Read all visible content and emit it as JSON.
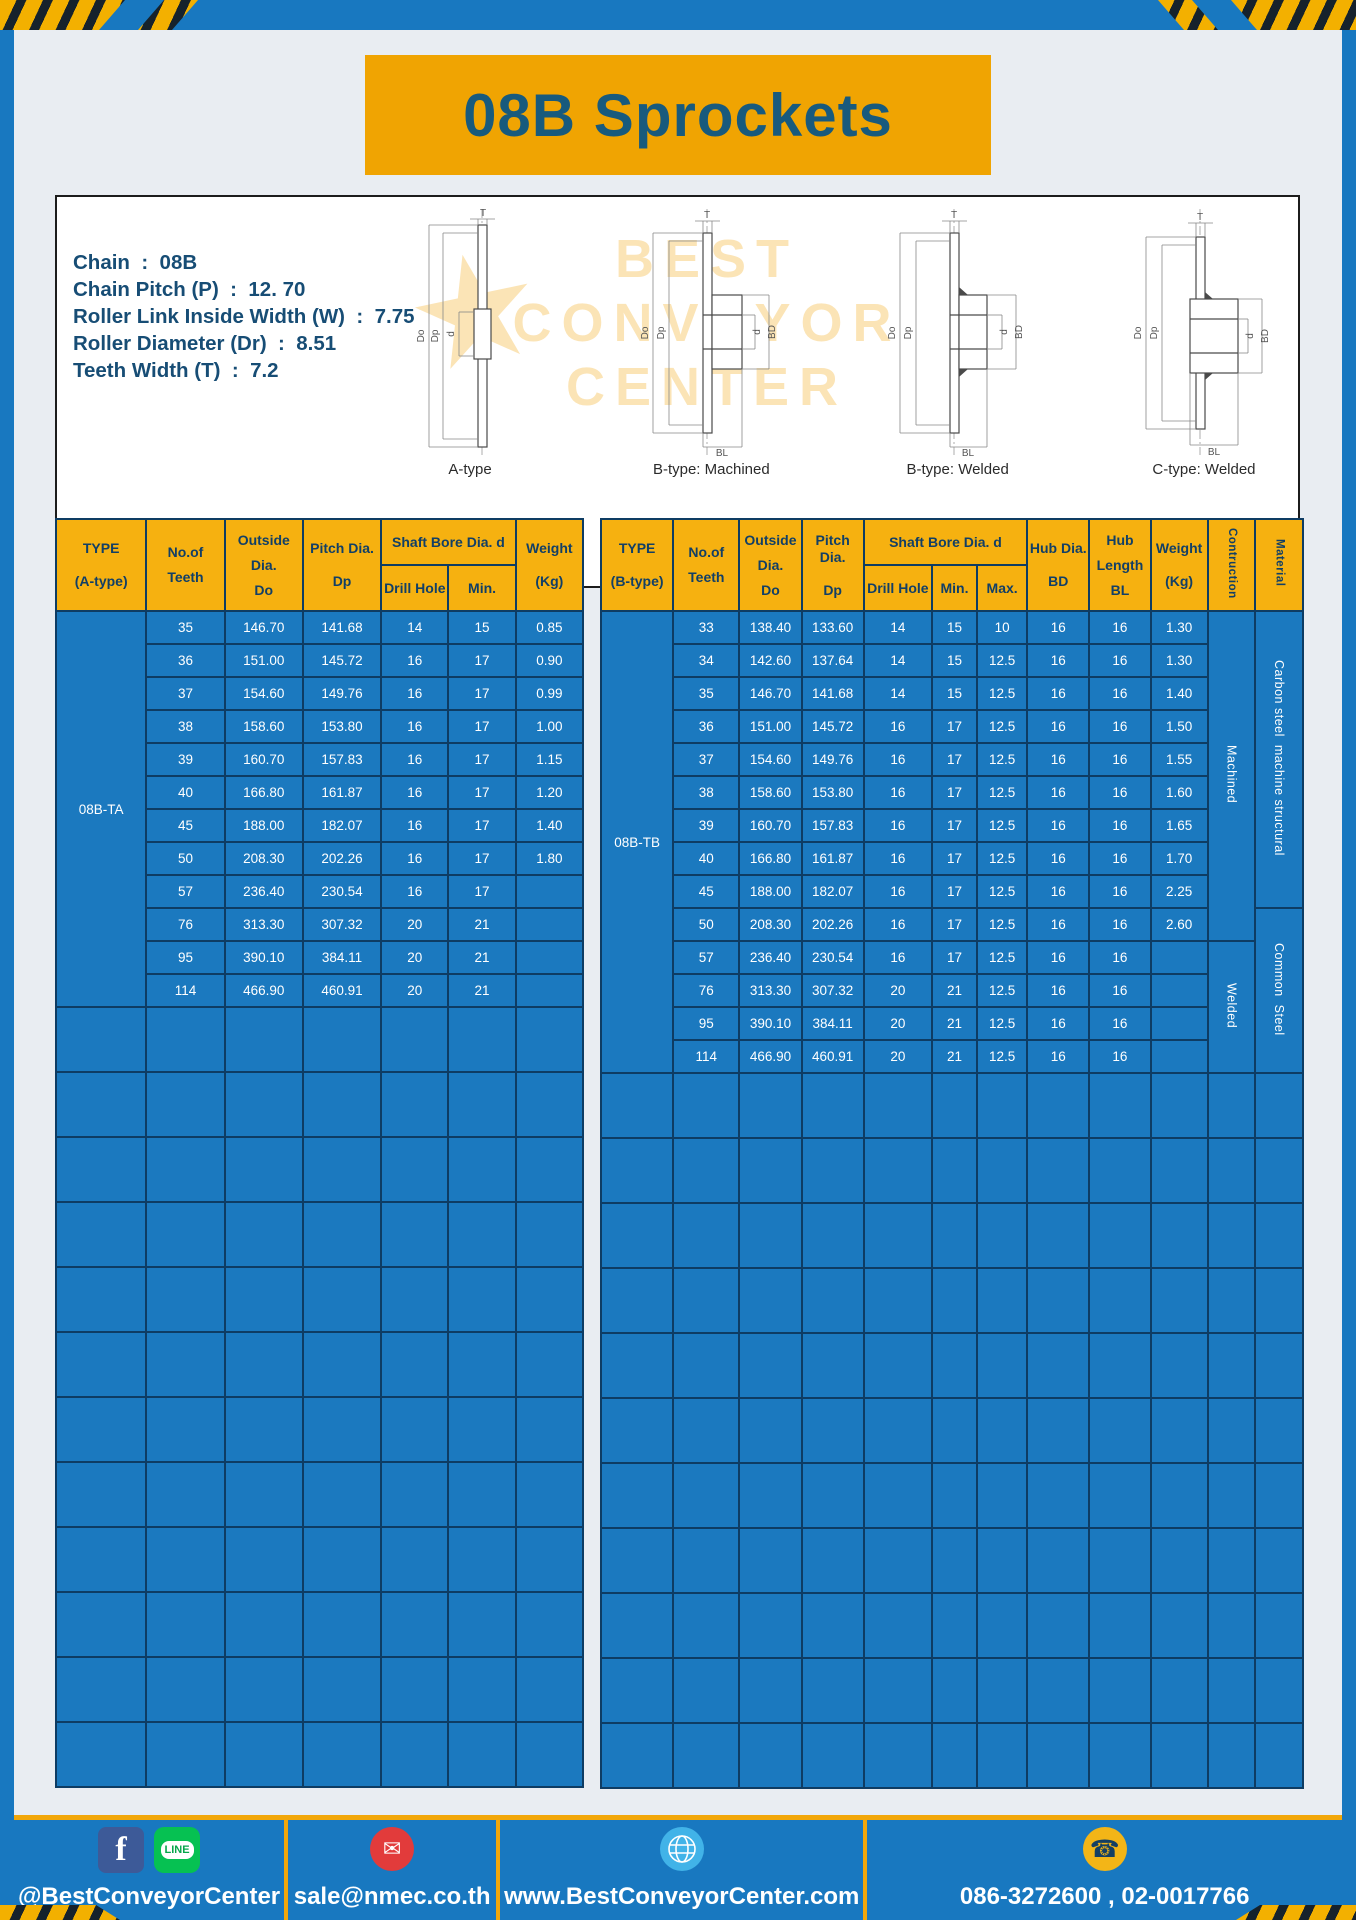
{
  "title": "08B Sprockets",
  "colors": {
    "frame_blue": "#1878c0",
    "amber": "#f2a70a",
    "table_header_yellow": "#f6b110",
    "table_body_blue": "#1b79bf",
    "table_border": "#0e3c63",
    "dark_text": "#174d75"
  },
  "specs": {
    "lines": [
      "Chain  :  08B",
      "Chain Pitch (P)  :  12. 70",
      "Roller Link Inside Width (W)  :  7.75",
      "Roller Diameter (Dr)  :  8.51",
      "Teeth Width (T)  :  7.2"
    ]
  },
  "watermark": {
    "line1": "BEST",
    "line2": "CONVEYOR",
    "line3": "CENTER",
    "star": "★"
  },
  "drawings": {
    "captions": [
      "A-type",
      "B-type: Machined",
      "B-type: Welded",
      "C-type: Welded"
    ],
    "dims": {
      "T": "T",
      "Do": "Do",
      "Dp": "Dp",
      "d": "d",
      "BD": "BD",
      "BL": "BL"
    }
  },
  "table_a": {
    "type_label": "08B-TA",
    "header": {
      "type": [
        "TYPE",
        "(A-type)"
      ],
      "teeth": [
        "No.of",
        "Teeth"
      ],
      "outside": [
        "Outside",
        "Dia.",
        "Do"
      ],
      "pitch": [
        "Pitch Dia.",
        "Dp"
      ],
      "shaft_bore": "Shaft Bore Dia. d",
      "drill_hole": "Drill Hole",
      "min": "Min.",
      "weight": [
        "Weight",
        "(Kg)"
      ]
    },
    "rows": [
      {
        "teeth": "35",
        "od": "146.70",
        "pd": "141.68",
        "drill": "14",
        "min": "15",
        "wt": "0.85"
      },
      {
        "teeth": "36",
        "od": "151.00",
        "pd": "145.72",
        "drill": "16",
        "min": "17",
        "wt": "0.90"
      },
      {
        "teeth": "37",
        "od": "154.60",
        "pd": "149.76",
        "drill": "16",
        "min": "17",
        "wt": "0.99"
      },
      {
        "teeth": "38",
        "od": "158.60",
        "pd": "153.80",
        "drill": "16",
        "min": "17",
        "wt": "1.00"
      },
      {
        "teeth": "39",
        "od": "160.70",
        "pd": "157.83",
        "drill": "16",
        "min": "17",
        "wt": "1.15"
      },
      {
        "teeth": "40",
        "od": "166.80",
        "pd": "161.87",
        "drill": "16",
        "min": "17",
        "wt": "1.20"
      },
      {
        "teeth": "45",
        "od": "188.00",
        "pd": "182.07",
        "drill": "16",
        "min": "17",
        "wt": "1.40"
      },
      {
        "teeth": "50",
        "od": "208.30",
        "pd": "202.26",
        "drill": "16",
        "min": "17",
        "wt": "1.80"
      },
      {
        "teeth": "57",
        "od": "236.40",
        "pd": "230.54",
        "drill": "16",
        "min": "17",
        "wt": ""
      },
      {
        "teeth": "76",
        "od": "313.30",
        "pd": "307.32",
        "drill": "20",
        "min": "21",
        "wt": ""
      },
      {
        "teeth": "95",
        "od": "390.10",
        "pd": "384.11",
        "drill": "20",
        "min": "21",
        "wt": ""
      },
      {
        "teeth": "114",
        "od": "466.90",
        "pd": "460.91",
        "drill": "20",
        "min": "21",
        "wt": ""
      }
    ],
    "empty_rows": 12
  },
  "table_b": {
    "type_label": "08B-TB",
    "header": {
      "type": [
        "TYPE",
        "(B-type)"
      ],
      "teeth": [
        "No.of",
        "Teeth"
      ],
      "outside": [
        "Outside",
        "Dia.",
        "Do"
      ],
      "pitch": [
        "Pitch Dia.",
        "Dp"
      ],
      "shaft_bore": "Shaft Bore Dia. d",
      "drill_hole": "Drill Hole",
      "min": "Min.",
      "max": "Max.",
      "hub_dia": [
        "Hub Dia.",
        "BD"
      ],
      "hub_len": [
        "Hub",
        "Length",
        "BL"
      ],
      "weight": [
        "Weight",
        "(Kg)"
      ],
      "construction": "Contruction",
      "material": "Material"
    },
    "rows": [
      {
        "teeth": "33",
        "od": "138.40",
        "pd": "133.60",
        "drill": "14",
        "min": "15",
        "max": "10",
        "bd": "16",
        "bl": "16",
        "wt": "1.30"
      },
      {
        "teeth": "34",
        "od": "142.60",
        "pd": "137.64",
        "drill": "14",
        "min": "15",
        "max": "12.5",
        "bd": "16",
        "bl": "16",
        "wt": "1.30"
      },
      {
        "teeth": "35",
        "od": "146.70",
        "pd": "141.68",
        "drill": "14",
        "min": "15",
        "max": "12.5",
        "bd": "16",
        "bl": "16",
        "wt": "1.40"
      },
      {
        "teeth": "36",
        "od": "151.00",
        "pd": "145.72",
        "drill": "16",
        "min": "17",
        "max": "12.5",
        "bd": "16",
        "bl": "16",
        "wt": "1.50"
      },
      {
        "teeth": "37",
        "od": "154.60",
        "pd": "149.76",
        "drill": "16",
        "min": "17",
        "max": "12.5",
        "bd": "16",
        "bl": "16",
        "wt": "1.55"
      },
      {
        "teeth": "38",
        "od": "158.60",
        "pd": "153.80",
        "drill": "16",
        "min": "17",
        "max": "12.5",
        "bd": "16",
        "bl": "16",
        "wt": "1.60"
      },
      {
        "teeth": "39",
        "od": "160.70",
        "pd": "157.83",
        "drill": "16",
        "min": "17",
        "max": "12.5",
        "bd": "16",
        "bl": "16",
        "wt": "1.65"
      },
      {
        "teeth": "40",
        "od": "166.80",
        "pd": "161.87",
        "drill": "16",
        "min": "17",
        "max": "12.5",
        "bd": "16",
        "bl": "16",
        "wt": "1.70"
      },
      {
        "teeth": "45",
        "od": "188.00",
        "pd": "182.07",
        "drill": "16",
        "min": "17",
        "max": "12.5",
        "bd": "16",
        "bl": "16",
        "wt": "2.25"
      },
      {
        "teeth": "50",
        "od": "208.30",
        "pd": "202.26",
        "drill": "16",
        "min": "17",
        "max": "12.5",
        "bd": "16",
        "bl": "16",
        "wt": "2.60"
      },
      {
        "teeth": "57",
        "od": "236.40",
        "pd": "230.54",
        "drill": "16",
        "min": "17",
        "max": "12.5",
        "bd": "16",
        "bl": "16",
        "wt": ""
      },
      {
        "teeth": "76",
        "od": "313.30",
        "pd": "307.32",
        "drill": "20",
        "min": "21",
        "max": "12.5",
        "bd": "16",
        "bl": "16",
        "wt": ""
      },
      {
        "teeth": "95",
        "od": "390.10",
        "pd": "384.11",
        "drill": "20",
        "min": "21",
        "max": "12.5",
        "bd": "16",
        "bl": "16",
        "wt": ""
      },
      {
        "teeth": "114",
        "od": "466.90",
        "pd": "460.91",
        "drill": "20",
        "min": "21",
        "max": "12.5",
        "bd": "16",
        "bl": "16",
        "wt": ""
      }
    ],
    "construction_groups": [
      {
        "label": "Machined",
        "span": 10
      },
      {
        "label": "Welded",
        "span": 4
      }
    ],
    "material_groups": [
      {
        "label": "Carbon steel  machine structural",
        "span": 9
      },
      {
        "label": "Common  Steel",
        "span": 5
      }
    ],
    "empty_rows": 11
  },
  "footer": {
    "social_label": "@BestConveyorCenter",
    "email": "sale@nmec.co.th",
    "website": "www.BestConveyorCenter.com",
    "phone": "086-3272600 , 02-0017766",
    "icons": {
      "facebook": "f",
      "line": "LINE",
      "mail": "✉",
      "phone": "☎"
    }
  }
}
